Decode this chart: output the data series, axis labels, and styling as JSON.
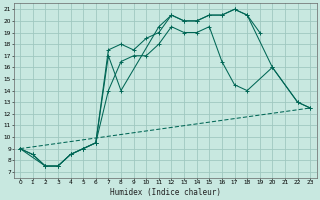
{
  "background_color": "#c8e8e0",
  "grid_color": "#a0c8c0",
  "line_color": "#006655",
  "xlabel": "Humidex (Indice chaleur)",
  "xlim": [
    -0.5,
    23.5
  ],
  "ylim": [
    6.5,
    21.5
  ],
  "xticks": [
    0,
    1,
    2,
    3,
    4,
    5,
    6,
    7,
    8,
    9,
    10,
    11,
    12,
    13,
    14,
    15,
    16,
    17,
    18,
    19,
    20,
    21,
    22,
    23
  ],
  "yticks": [
    7,
    8,
    9,
    10,
    11,
    12,
    13,
    14,
    15,
    16,
    17,
    18,
    19,
    20,
    21
  ],
  "line1_x": [
    0,
    1,
    2,
    3,
    4,
    5,
    6,
    7,
    8,
    11,
    12,
    13,
    14,
    15,
    16,
    17,
    18,
    19
  ],
  "line1_y": [
    9.0,
    8.5,
    7.5,
    7.5,
    8.5,
    9.0,
    9.5,
    17.0,
    14.0,
    19.5,
    20.5,
    20.0,
    20.0,
    20.5,
    20.5,
    21.0,
    20.5,
    19.0
  ],
  "line2_x": [
    0,
    1,
    2,
    3,
    4,
    5,
    6,
    7,
    8,
    9,
    10,
    11,
    12,
    13,
    14,
    15,
    16,
    17,
    18,
    20,
    22,
    23
  ],
  "line2_y": [
    9.0,
    8.5,
    7.5,
    7.5,
    8.5,
    9.0,
    9.5,
    17.5,
    18.0,
    17.5,
    18.5,
    19.0,
    20.5,
    20.0,
    20.0,
    20.5,
    20.5,
    21.0,
    20.5,
    16.0,
    13.0,
    12.5
  ],
  "line3_x": [
    0,
    2,
    3,
    4,
    5,
    6,
    7,
    8,
    9,
    10,
    11,
    12,
    13,
    14,
    15,
    16,
    17,
    18,
    20,
    22,
    23
  ],
  "line3_y": [
    9.0,
    7.5,
    7.5,
    8.5,
    9.0,
    9.5,
    14.0,
    16.5,
    17.0,
    17.0,
    18.0,
    19.5,
    19.0,
    19.0,
    19.5,
    16.5,
    14.5,
    14.0,
    16.0,
    13.0,
    12.5
  ],
  "line4_x": [
    0,
    23
  ],
  "line4_y": [
    9.0,
    12.5
  ]
}
